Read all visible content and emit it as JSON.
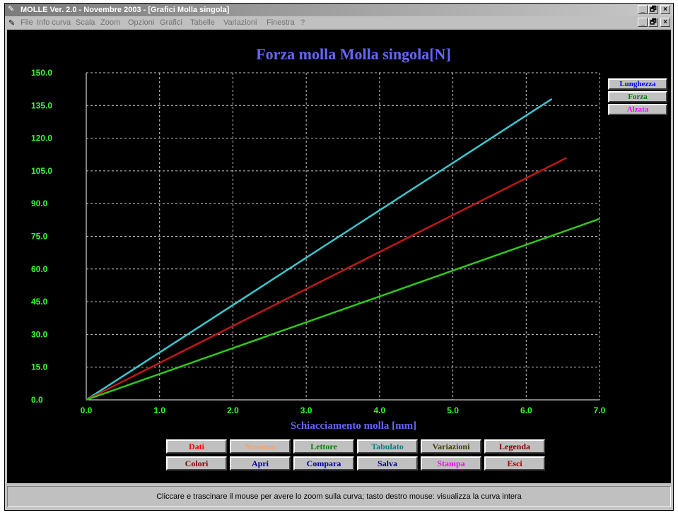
{
  "window": {
    "title": "MOLLE Ver. 2.0 - Novembre 2003 - [Grafici Molla singola]",
    "icon": "spring-app-icon",
    "controls": [
      "_",
      "🗗",
      "×"
    ]
  },
  "menu": {
    "items": [
      "File",
      "Info curva",
      "Scala",
      "Zoom",
      "Opzioni",
      "Grafici",
      "Tabelle",
      "Variazioni",
      "Finestra",
      "?"
    ]
  },
  "legend_buttons": [
    {
      "label": "Lunghezza",
      "color": "#0000ff"
    },
    {
      "label": "Forza",
      "color": "#008000"
    },
    {
      "label": "Alzata",
      "color": "#ff00ff"
    }
  ],
  "chart_data": {
    "type": "line",
    "title": "Forza molla Molla singola[N]",
    "xlabel": "Schiacciamento molla [mm]",
    "ylabel": "",
    "xlim": [
      0,
      7
    ],
    "ylim": [
      0,
      150
    ],
    "x_ticks": [
      "0.0",
      "1.0",
      "2.0",
      "3.0",
      "4.0",
      "5.0",
      "6.0",
      "7.0"
    ],
    "y_ticks": [
      "0.0",
      "15.0",
      "30.0",
      "45.0",
      "60.0",
      "75.0",
      "90.0",
      "105.0",
      "120.0",
      "135.0",
      "150.0"
    ],
    "grid": true,
    "series": [
      {
        "color": "#3cc8d0",
        "x": [
          0,
          6.35
        ],
        "y": [
          0,
          138
        ]
      },
      {
        "color": "#c01818",
        "x": [
          0,
          6.55
        ],
        "y": [
          0,
          111
        ]
      },
      {
        "color": "#30c818",
        "x": [
          0,
          7.0
        ],
        "y": [
          0,
          83
        ]
      }
    ],
    "colors": {
      "title": "#6666ff",
      "tick_labels": "#33ff33",
      "xlabel": "#6666ff",
      "grid": "#c8c8c8",
      "background": "#000000"
    }
  },
  "buttons": {
    "row1": [
      {
        "label": "Dati",
        "color": "#ff0000"
      },
      {
        "label": "Nessuno",
        "color": "#ffa060"
      },
      {
        "label": "Lettore",
        "color": "#008000"
      },
      {
        "label": "Tabulato",
        "color": "#008080"
      },
      {
        "label": "Variazioni",
        "color": "#404000"
      },
      {
        "label": "Legenda",
        "color": "#800000"
      }
    ],
    "row2": [
      {
        "label": "Colori",
        "color": "#800000"
      },
      {
        "label": "Apri",
        "color": "#0000a0"
      },
      {
        "label": "Compara",
        "color": "#0000a0"
      },
      {
        "label": "Salva",
        "color": "#000080"
      },
      {
        "label": "Stampa",
        "color": "#ff00ff"
      },
      {
        "label": "Esci",
        "color": "#a00000"
      }
    ]
  },
  "status": {
    "text": "Cliccare e trascinare il mouse per avere lo zoom sulla curva; tasto destro mouse: visualizza la curva intera"
  }
}
